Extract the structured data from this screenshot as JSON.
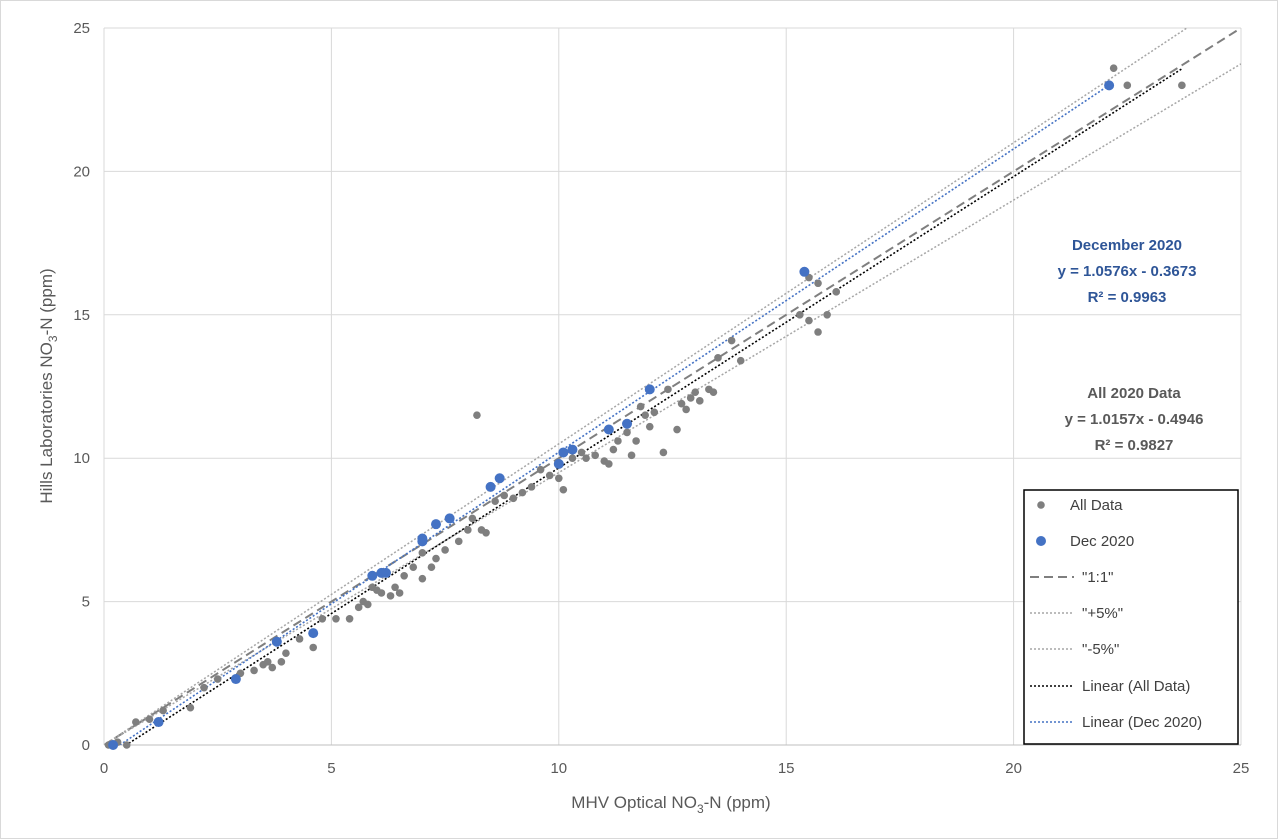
{
  "chart_data": {
    "type": "scatter",
    "xlabel": {
      "main": "MHV Optical NO",
      "sub": "3",
      "tail": "-N (ppm)"
    },
    "ylabel": {
      "main": "Hills Laboratories NO",
      "sub": "3",
      "tail": "-N (ppm)"
    },
    "xlim": [
      0,
      25
    ],
    "ylim": [
      0,
      25
    ],
    "x_ticks": [
      "0",
      "5",
      "10",
      "15",
      "20",
      "25"
    ],
    "y_ticks": [
      "0",
      "5",
      "10",
      "15",
      "20",
      "25"
    ],
    "grid": true,
    "legend_position": "bottom-right",
    "colors": {
      "all_data": "#7f7f7f",
      "dec_2020": "#4472c4",
      "one_to_one": "#7f7f7f",
      "plus5": "#a6a6a6",
      "minus5": "#a6a6a6",
      "linear_all": "#000000",
      "linear_dec": "#4472c4"
    },
    "series": [
      {
        "name": "All Data",
        "kind": "scatter",
        "points": [
          [
            0.1,
            0.0
          ],
          [
            0.3,
            0.1
          ],
          [
            0.5,
            0.0
          ],
          [
            0.7,
            0.8
          ],
          [
            1.0,
            0.9
          ],
          [
            1.3,
            1.2
          ],
          [
            1.9,
            1.3
          ],
          [
            2.2,
            2.0
          ],
          [
            2.5,
            2.3
          ],
          [
            3.0,
            2.5
          ],
          [
            3.3,
            2.6
          ],
          [
            3.5,
            2.8
          ],
          [
            3.6,
            2.9
          ],
          [
            3.7,
            2.7
          ],
          [
            3.9,
            2.9
          ],
          [
            4.0,
            3.2
          ],
          [
            4.3,
            3.7
          ],
          [
            4.6,
            3.4
          ],
          [
            4.8,
            4.4
          ],
          [
            5.1,
            4.4
          ],
          [
            5.4,
            4.4
          ],
          [
            5.6,
            4.8
          ],
          [
            5.7,
            5.0
          ],
          [
            5.8,
            4.9
          ],
          [
            5.9,
            5.5
          ],
          [
            6.0,
            5.4
          ],
          [
            6.1,
            5.3
          ],
          [
            6.3,
            5.2
          ],
          [
            6.4,
            5.5
          ],
          [
            6.5,
            5.3
          ],
          [
            6.6,
            5.9
          ],
          [
            6.8,
            6.2
          ],
          [
            7.0,
            6.7
          ],
          [
            7.0,
            5.8
          ],
          [
            7.2,
            6.2
          ],
          [
            7.3,
            6.5
          ],
          [
            7.5,
            6.8
          ],
          [
            7.8,
            7.1
          ],
          [
            8.0,
            7.5
          ],
          [
            8.1,
            7.9
          ],
          [
            8.2,
            11.5
          ],
          [
            8.3,
            7.5
          ],
          [
            8.4,
            7.4
          ],
          [
            8.6,
            8.5
          ],
          [
            8.8,
            8.7
          ],
          [
            9.0,
            8.6
          ],
          [
            9.2,
            8.8
          ],
          [
            9.4,
            9.0
          ],
          [
            9.6,
            9.6
          ],
          [
            9.8,
            9.4
          ],
          [
            10.0,
            9.3
          ],
          [
            10.1,
            8.9
          ],
          [
            10.3,
            10.0
          ],
          [
            10.5,
            10.2
          ],
          [
            10.6,
            10.0
          ],
          [
            10.8,
            10.1
          ],
          [
            11.0,
            9.9
          ],
          [
            11.1,
            9.8
          ],
          [
            11.2,
            10.3
          ],
          [
            11.3,
            10.6
          ],
          [
            11.5,
            10.9
          ],
          [
            11.6,
            10.1
          ],
          [
            11.7,
            10.6
          ],
          [
            11.8,
            11.8
          ],
          [
            11.9,
            11.5
          ],
          [
            12.0,
            11.1
          ],
          [
            12.1,
            11.6
          ],
          [
            12.3,
            10.2
          ],
          [
            12.4,
            12.4
          ],
          [
            12.6,
            11.0
          ],
          [
            12.7,
            11.9
          ],
          [
            12.8,
            11.7
          ],
          [
            12.9,
            12.1
          ],
          [
            13.0,
            12.3
          ],
          [
            13.1,
            12.0
          ],
          [
            13.3,
            12.4
          ],
          [
            13.4,
            12.3
          ],
          [
            13.5,
            13.5
          ],
          [
            13.8,
            14.1
          ],
          [
            14.0,
            13.4
          ],
          [
            15.3,
            15.0
          ],
          [
            15.5,
            14.8
          ],
          [
            15.5,
            16.3
          ],
          [
            15.7,
            16.1
          ],
          [
            15.7,
            14.4
          ],
          [
            15.9,
            15.0
          ],
          [
            16.1,
            15.8
          ],
          [
            22.2,
            23.6
          ],
          [
            22.5,
            23.0
          ],
          [
            23.7,
            23.0
          ]
        ]
      },
      {
        "name": "Dec 2020",
        "kind": "scatter",
        "points": [
          [
            0.2,
            0.0
          ],
          [
            1.2,
            0.8
          ],
          [
            2.9,
            2.3
          ],
          [
            3.8,
            3.6
          ],
          [
            4.6,
            3.9
          ],
          [
            5.9,
            5.9
          ],
          [
            6.1,
            6.0
          ],
          [
            6.2,
            6.0
          ],
          [
            7.0,
            7.1
          ],
          [
            7.0,
            7.2
          ],
          [
            7.3,
            7.7
          ],
          [
            7.6,
            7.9
          ],
          [
            8.5,
            9.0
          ],
          [
            8.7,
            9.3
          ],
          [
            10.0,
            9.8
          ],
          [
            10.1,
            10.2
          ],
          [
            10.3,
            10.3
          ],
          [
            11.1,
            11.0
          ],
          [
            11.5,
            11.2
          ],
          [
            12.0,
            12.4
          ],
          [
            15.4,
            16.5
          ],
          [
            22.1,
            23.0
          ]
        ]
      },
      {
        "name": "\"1:1\"",
        "kind": "line",
        "style": "dash",
        "slope": 1.0,
        "intercept": 0.0,
        "x_range": [
          0,
          25
        ]
      },
      {
        "name": "\"+5%\"",
        "kind": "line",
        "style": "dot",
        "slope": 1.05,
        "intercept": 0.0,
        "x_range": [
          0,
          25
        ]
      },
      {
        "name": "\"-5%\"",
        "kind": "line",
        "style": "dot",
        "slope": 0.95,
        "intercept": 0.0,
        "x_range": [
          0,
          25
        ]
      },
      {
        "name": "Linear (All Data)",
        "kind": "trendline",
        "style": "dot",
        "slope": 1.0157,
        "intercept": -0.4946,
        "x_range": [
          0.1,
          23.7
        ]
      },
      {
        "name": "Linear (Dec 2020)",
        "kind": "trendline",
        "style": "dot",
        "slope": 1.0576,
        "intercept": -0.3673,
        "x_range": [
          0.2,
          22.1
        ]
      }
    ],
    "annotations": [
      {
        "id": "dec",
        "lines": [
          "December 2020",
          "y = 1.0576x - 0.3673",
          "R² = 0.9963"
        ],
        "color": "#2e5597"
      },
      {
        "id": "all",
        "lines": [
          "All 2020 Data",
          "y = 1.0157x - 0.4946",
          "R² = 0.9827"
        ],
        "color": "#595959"
      }
    ]
  }
}
